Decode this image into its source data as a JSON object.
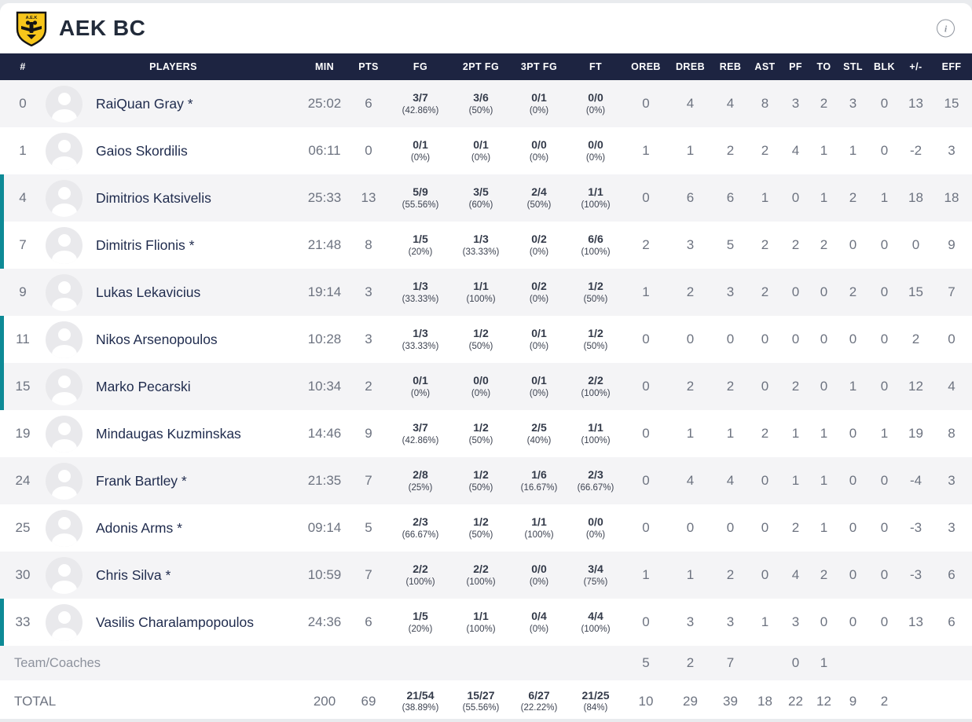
{
  "header": {
    "team_name": "AEK BC",
    "logo_colors": {
      "shield": "#f7c61b",
      "detail": "#141414"
    },
    "info_icon": "i"
  },
  "colors": {
    "table_header_bg": "#1d2441",
    "row_stripe": "#f4f4f6",
    "on_court_accent": "#0d8a96",
    "player_name": "#1f2b4d",
    "stat_text": "#6d7380"
  },
  "table": {
    "columns": [
      "#",
      "PLAYERS",
      "MIN",
      "PTS",
      "FG",
      "2PT FG",
      "3PT FG",
      "FT",
      "OREB",
      "DREB",
      "REB",
      "AST",
      "PF",
      "TO",
      "STL",
      "BLK",
      "+/-",
      "EFF"
    ],
    "rows": [
      {
        "num": "0",
        "name": "RaiQuan Gray *",
        "on_court": false,
        "min": "25:02",
        "pts": "6",
        "fg": "3/7",
        "fg_pct": "(42.86%)",
        "fg2": "3/6",
        "fg2_pct": "(50%)",
        "fg3": "0/1",
        "fg3_pct": "(0%)",
        "ft": "0/0",
        "ft_pct": "(0%)",
        "stats": [
          "0",
          "4",
          "4",
          "8",
          "3",
          "2",
          "3",
          "0",
          "13",
          "15"
        ]
      },
      {
        "num": "1",
        "name": "Gaios Skordilis",
        "on_court": false,
        "min": "06:11",
        "pts": "0",
        "fg": "0/1",
        "fg_pct": "(0%)",
        "fg2": "0/1",
        "fg2_pct": "(0%)",
        "fg3": "0/0",
        "fg3_pct": "(0%)",
        "ft": "0/0",
        "ft_pct": "(0%)",
        "stats": [
          "1",
          "1",
          "2",
          "2",
          "4",
          "1",
          "1",
          "0",
          "-2",
          "3"
        ]
      },
      {
        "num": "4",
        "name": "Dimitrios Katsivelis",
        "on_court": true,
        "min": "25:33",
        "pts": "13",
        "fg": "5/9",
        "fg_pct": "(55.56%)",
        "fg2": "3/5",
        "fg2_pct": "(60%)",
        "fg3": "2/4",
        "fg3_pct": "(50%)",
        "ft": "1/1",
        "ft_pct": "(100%)",
        "stats": [
          "0",
          "6",
          "6",
          "1",
          "0",
          "1",
          "2",
          "1",
          "18",
          "18"
        ]
      },
      {
        "num": "7",
        "name": "Dimitris Flionis *",
        "on_court": true,
        "min": "21:48",
        "pts": "8",
        "fg": "1/5",
        "fg_pct": "(20%)",
        "fg2": "1/3",
        "fg2_pct": "(33.33%)",
        "fg3": "0/2",
        "fg3_pct": "(0%)",
        "ft": "6/6",
        "ft_pct": "(100%)",
        "stats": [
          "2",
          "3",
          "5",
          "2",
          "2",
          "2",
          "0",
          "0",
          "0",
          "9"
        ]
      },
      {
        "num": "9",
        "name": "Lukas Lekavicius",
        "on_court": false,
        "min": "19:14",
        "pts": "3",
        "fg": "1/3",
        "fg_pct": "(33.33%)",
        "fg2": "1/1",
        "fg2_pct": "(100%)",
        "fg3": "0/2",
        "fg3_pct": "(0%)",
        "ft": "1/2",
        "ft_pct": "(50%)",
        "stats": [
          "1",
          "2",
          "3",
          "2",
          "0",
          "0",
          "2",
          "0",
          "15",
          "7"
        ]
      },
      {
        "num": "11",
        "name": "Nikos Arsenopoulos",
        "on_court": true,
        "min": "10:28",
        "pts": "3",
        "fg": "1/3",
        "fg_pct": "(33.33%)",
        "fg2": "1/2",
        "fg2_pct": "(50%)",
        "fg3": "0/1",
        "fg3_pct": "(0%)",
        "ft": "1/2",
        "ft_pct": "(50%)",
        "stats": [
          "0",
          "0",
          "0",
          "0",
          "0",
          "0",
          "0",
          "0",
          "2",
          "0"
        ]
      },
      {
        "num": "15",
        "name": "Marko Pecarski",
        "on_court": true,
        "min": "10:34",
        "pts": "2",
        "fg": "0/1",
        "fg_pct": "(0%)",
        "fg2": "0/0",
        "fg2_pct": "(0%)",
        "fg3": "0/1",
        "fg3_pct": "(0%)",
        "ft": "2/2",
        "ft_pct": "(100%)",
        "stats": [
          "0",
          "2",
          "2",
          "0",
          "2",
          "0",
          "1",
          "0",
          "12",
          "4"
        ]
      },
      {
        "num": "19",
        "name": "Mindaugas Kuzminskas",
        "on_court": false,
        "min": "14:46",
        "pts": "9",
        "fg": "3/7",
        "fg_pct": "(42.86%)",
        "fg2": "1/2",
        "fg2_pct": "(50%)",
        "fg3": "2/5",
        "fg3_pct": "(40%)",
        "ft": "1/1",
        "ft_pct": "(100%)",
        "stats": [
          "0",
          "1",
          "1",
          "2",
          "1",
          "1",
          "0",
          "1",
          "19",
          "8"
        ]
      },
      {
        "num": "24",
        "name": "Frank Bartley *",
        "on_court": false,
        "min": "21:35",
        "pts": "7",
        "fg": "2/8",
        "fg_pct": "(25%)",
        "fg2": "1/2",
        "fg2_pct": "(50%)",
        "fg3": "1/6",
        "fg3_pct": "(16.67%)",
        "ft": "2/3",
        "ft_pct": "(66.67%)",
        "stats": [
          "0",
          "4",
          "4",
          "0",
          "1",
          "1",
          "0",
          "0",
          "-4",
          "3"
        ]
      },
      {
        "num": "25",
        "name": "Adonis Arms *",
        "on_court": false,
        "min": "09:14",
        "pts": "5",
        "fg": "2/3",
        "fg_pct": "(66.67%)",
        "fg2": "1/2",
        "fg2_pct": "(50%)",
        "fg3": "1/1",
        "fg3_pct": "(100%)",
        "ft": "0/0",
        "ft_pct": "(0%)",
        "stats": [
          "0",
          "0",
          "0",
          "0",
          "2",
          "1",
          "0",
          "0",
          "-3",
          "3"
        ]
      },
      {
        "num": "30",
        "name": "Chris Silva *",
        "on_court": false,
        "min": "10:59",
        "pts": "7",
        "fg": "2/2",
        "fg_pct": "(100%)",
        "fg2": "2/2",
        "fg2_pct": "(100%)",
        "fg3": "0/0",
        "fg3_pct": "(0%)",
        "ft": "3/4",
        "ft_pct": "(75%)",
        "stats": [
          "1",
          "1",
          "2",
          "0",
          "4",
          "2",
          "0",
          "0",
          "-3",
          "6"
        ]
      },
      {
        "num": "33",
        "name": "Vasilis Charalampopoulos",
        "on_court": true,
        "min": "24:36",
        "pts": "6",
        "fg": "1/5",
        "fg_pct": "(20%)",
        "fg2": "1/1",
        "fg2_pct": "(100%)",
        "fg3": "0/4",
        "fg3_pct": "(0%)",
        "ft": "4/4",
        "ft_pct": "(100%)",
        "stats": [
          "0",
          "3",
          "3",
          "1",
          "3",
          "0",
          "0",
          "0",
          "13",
          "6"
        ]
      }
    ],
    "team_row": {
      "label": "Team/Coaches",
      "stats": [
        "5",
        "2",
        "7",
        "",
        "0",
        "1",
        "",
        "",
        "",
        ""
      ]
    },
    "total_row": {
      "label": "TOTAL",
      "min": "200",
      "pts": "69",
      "fg": "21/54",
      "fg_pct": "(38.89%)",
      "fg2": "15/27",
      "fg2_pct": "(55.56%)",
      "fg3": "6/27",
      "fg3_pct": "(22.22%)",
      "ft": "21/25",
      "ft_pct": "(84%)",
      "stats": [
        "10",
        "29",
        "39",
        "18",
        "22",
        "12",
        "9",
        "2",
        "",
        ""
      ]
    },
    "stat_keys": [
      "oreb",
      "dreb",
      "reb",
      "ast",
      "pf",
      "to",
      "stl",
      "blk",
      "plus-minus",
      "eff"
    ]
  }
}
